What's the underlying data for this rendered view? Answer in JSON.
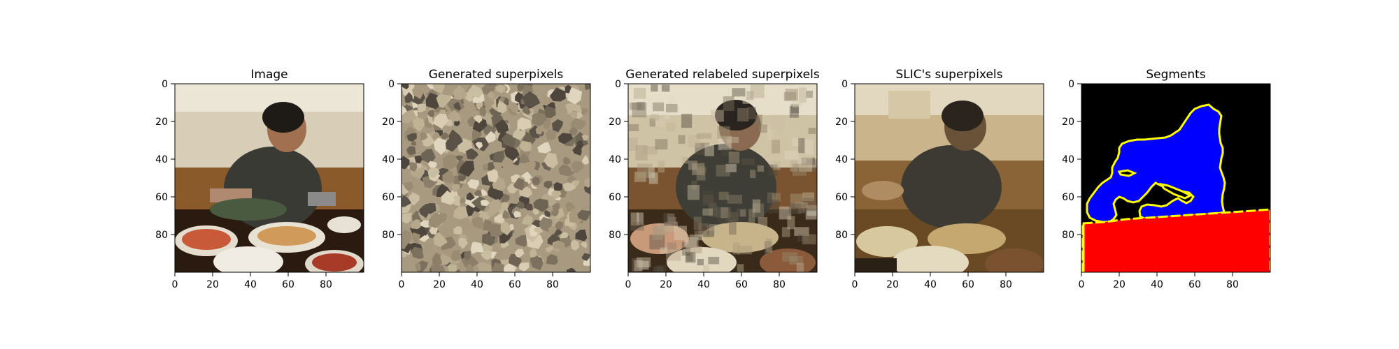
{
  "chart_data": [
    {
      "type": "image",
      "title": "Image",
      "x": {
        "range": [
          0,
          100
        ],
        "ticks": [
          0,
          20,
          40,
          60,
          80
        ]
      },
      "y": {
        "range": [
          0,
          100
        ],
        "ticks": [
          0,
          20,
          40,
          60,
          80
        ],
        "inverted": true
      },
      "content": "photo"
    },
    {
      "type": "image",
      "title": "Generated superpixels",
      "x": {
        "range": [
          0,
          100
        ],
        "ticks": [
          0,
          20,
          40,
          60,
          80
        ]
      },
      "y": {
        "range": [
          0,
          100
        ],
        "ticks": [
          0,
          20,
          40,
          60,
          80
        ],
        "inverted": true
      },
      "content": "noise"
    },
    {
      "type": "image",
      "title": "Generated relabeled superpixels",
      "x": {
        "range": [
          0,
          100
        ],
        "ticks": [
          0,
          20,
          40,
          60,
          80
        ]
      },
      "y": {
        "range": [
          0,
          100
        ],
        "ticks": [
          0,
          20,
          40,
          60,
          80
        ],
        "inverted": true
      },
      "content": "blocky"
    },
    {
      "type": "image",
      "title": "SLIC's superpixels",
      "x": {
        "range": [
          0,
          100
        ],
        "ticks": [
          0,
          20,
          40,
          60,
          80
        ]
      },
      "y": {
        "range": [
          0,
          100
        ],
        "ticks": [
          0,
          20,
          40,
          60,
          80
        ],
        "inverted": true
      },
      "content": "slic"
    },
    {
      "type": "image",
      "title": "Segments",
      "x": {
        "range": [
          0,
          100
        ],
        "ticks": [
          0,
          20,
          40,
          60,
          80
        ]
      },
      "y": {
        "range": [
          0,
          100
        ],
        "ticks": [
          0,
          20,
          40,
          60,
          80
        ],
        "inverted": true
      },
      "content": "segments",
      "colors": {
        "background": "#000000",
        "person": "#0000ff",
        "table": "#ff0000",
        "boundary": "#ffff00"
      }
    }
  ]
}
